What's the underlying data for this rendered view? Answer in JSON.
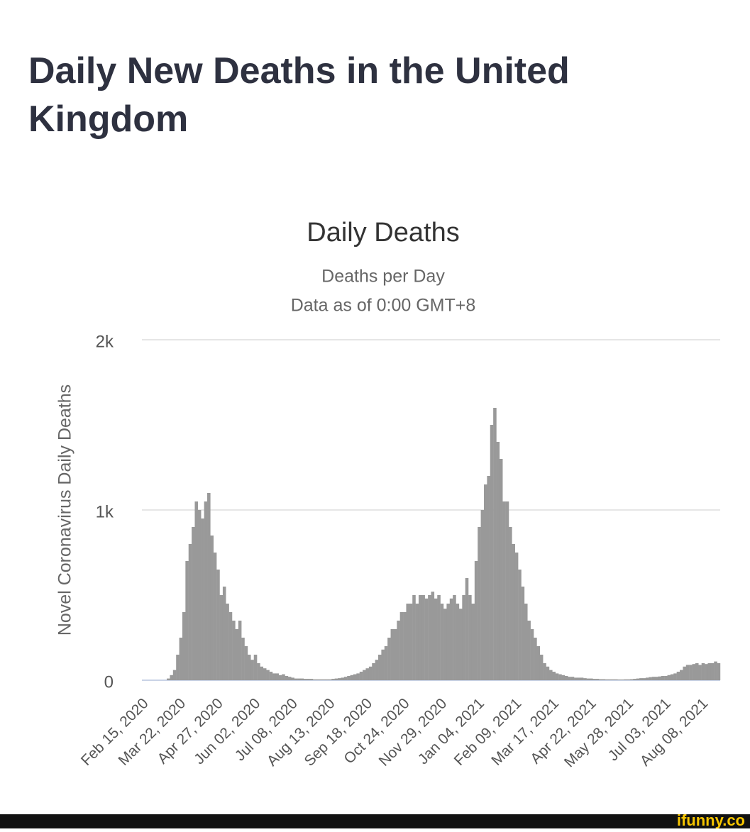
{
  "header": {
    "title": "Daily New Deaths in the United Kingdom"
  },
  "chart_data": {
    "type": "bar",
    "title": "Daily Deaths",
    "subtitle": "Deaths per Day",
    "note": "Data as of 0:00 GMT+8",
    "y_label": "Novel Coronavirus Daily Deaths",
    "color": "#999999",
    "grid": true,
    "ylim": [
      0,
      2000
    ],
    "yticks": [
      {
        "value": 0,
        "label": "0"
      },
      {
        "value": 1000,
        "label": "1k"
      },
      {
        "value": 2000,
        "label": "2k"
      }
    ],
    "categories": [
      "Feb 15, 2020",
      null,
      null,
      null,
      null,
      null,
      null,
      null,
      null,
      null,
      null,
      null,
      "Mar 22, 2020",
      null,
      null,
      null,
      null,
      null,
      null,
      null,
      null,
      null,
      null,
      null,
      "Apr 27, 2020",
      null,
      null,
      null,
      null,
      null,
      null,
      null,
      null,
      null,
      null,
      null,
      "Jun 02, 2020",
      null,
      null,
      null,
      null,
      null,
      null,
      null,
      null,
      null,
      null,
      null,
      "Jul 08, 2020",
      null,
      null,
      null,
      null,
      null,
      null,
      null,
      null,
      null,
      null,
      null,
      "Aug 13, 2020",
      null,
      null,
      null,
      null,
      null,
      null,
      null,
      null,
      null,
      null,
      null,
      "Sep 18, 2020",
      null,
      null,
      null,
      null,
      null,
      null,
      null,
      null,
      null,
      null,
      null,
      "Oct 24, 2020",
      null,
      null,
      null,
      null,
      null,
      null,
      null,
      null,
      null,
      null,
      null,
      "Nov 29, 2020",
      null,
      null,
      null,
      null,
      null,
      null,
      null,
      null,
      null,
      null,
      null,
      "Jan 04, 2021",
      null,
      null,
      null,
      null,
      null,
      null,
      null,
      null,
      null,
      null,
      null,
      "Feb 09, 2021",
      null,
      null,
      null,
      null,
      null,
      null,
      null,
      null,
      null,
      null,
      null,
      "Mar 17, 2021",
      null,
      null,
      null,
      null,
      null,
      null,
      null,
      null,
      null,
      null,
      null,
      "Apr 22, 2021",
      null,
      null,
      null,
      null,
      null,
      null,
      null,
      null,
      null,
      null,
      null,
      "May 28, 2021",
      null,
      null,
      null,
      null,
      null,
      null,
      null,
      null,
      null,
      null,
      null,
      "Jul 03, 2021",
      null,
      null,
      null,
      null,
      null,
      null,
      null,
      null,
      null,
      null,
      null,
      "Aug 08, 2021",
      null,
      null,
      null,
      null,
      null
    ],
    "values": [
      0,
      0,
      0,
      0,
      0,
      0,
      0,
      0,
      10,
      30,
      60,
      150,
      250,
      400,
      700,
      800,
      900,
      1050,
      1000,
      950,
      1050,
      1100,
      850,
      750,
      650,
      500,
      550,
      450,
      400,
      350,
      300,
      350,
      250,
      200,
      150,
      120,
      150,
      100,
      80,
      70,
      60,
      50,
      40,
      40,
      30,
      35,
      25,
      20,
      15,
      10,
      10,
      10,
      8,
      8,
      8,
      5,
      5,
      5,
      5,
      5,
      5,
      8,
      10,
      12,
      15,
      20,
      25,
      30,
      35,
      40,
      50,
      60,
      70,
      80,
      100,
      120,
      150,
      180,
      200,
      250,
      300,
      300,
      350,
      400,
      400,
      450,
      450,
      500,
      450,
      500,
      500,
      480,
      500,
      520,
      480,
      500,
      450,
      420,
      450,
      480,
      500,
      450,
      420,
      500,
      600,
      500,
      450,
      700,
      900,
      1000,
      1150,
      1200,
      1500,
      1600,
      1400,
      1300,
      1050,
      1050,
      900,
      800,
      750,
      650,
      550,
      450,
      350,
      300,
      250,
      200,
      150,
      100,
      80,
      60,
      50,
      40,
      35,
      30,
      25,
      20,
      20,
      15,
      15,
      15,
      12,
      10,
      10,
      8,
      8,
      6,
      6,
      5,
      5,
      5,
      5,
      4,
      4,
      5,
      5,
      6,
      8,
      10,
      12,
      12,
      15,
      18,
      20,
      20,
      22,
      25,
      25,
      30,
      35,
      40,
      50,
      60,
      80,
      90,
      90,
      95,
      100,
      90,
      100,
      95,
      100,
      100,
      110,
      100
    ]
  },
  "footer": {
    "watermark": "ifunny.co"
  }
}
